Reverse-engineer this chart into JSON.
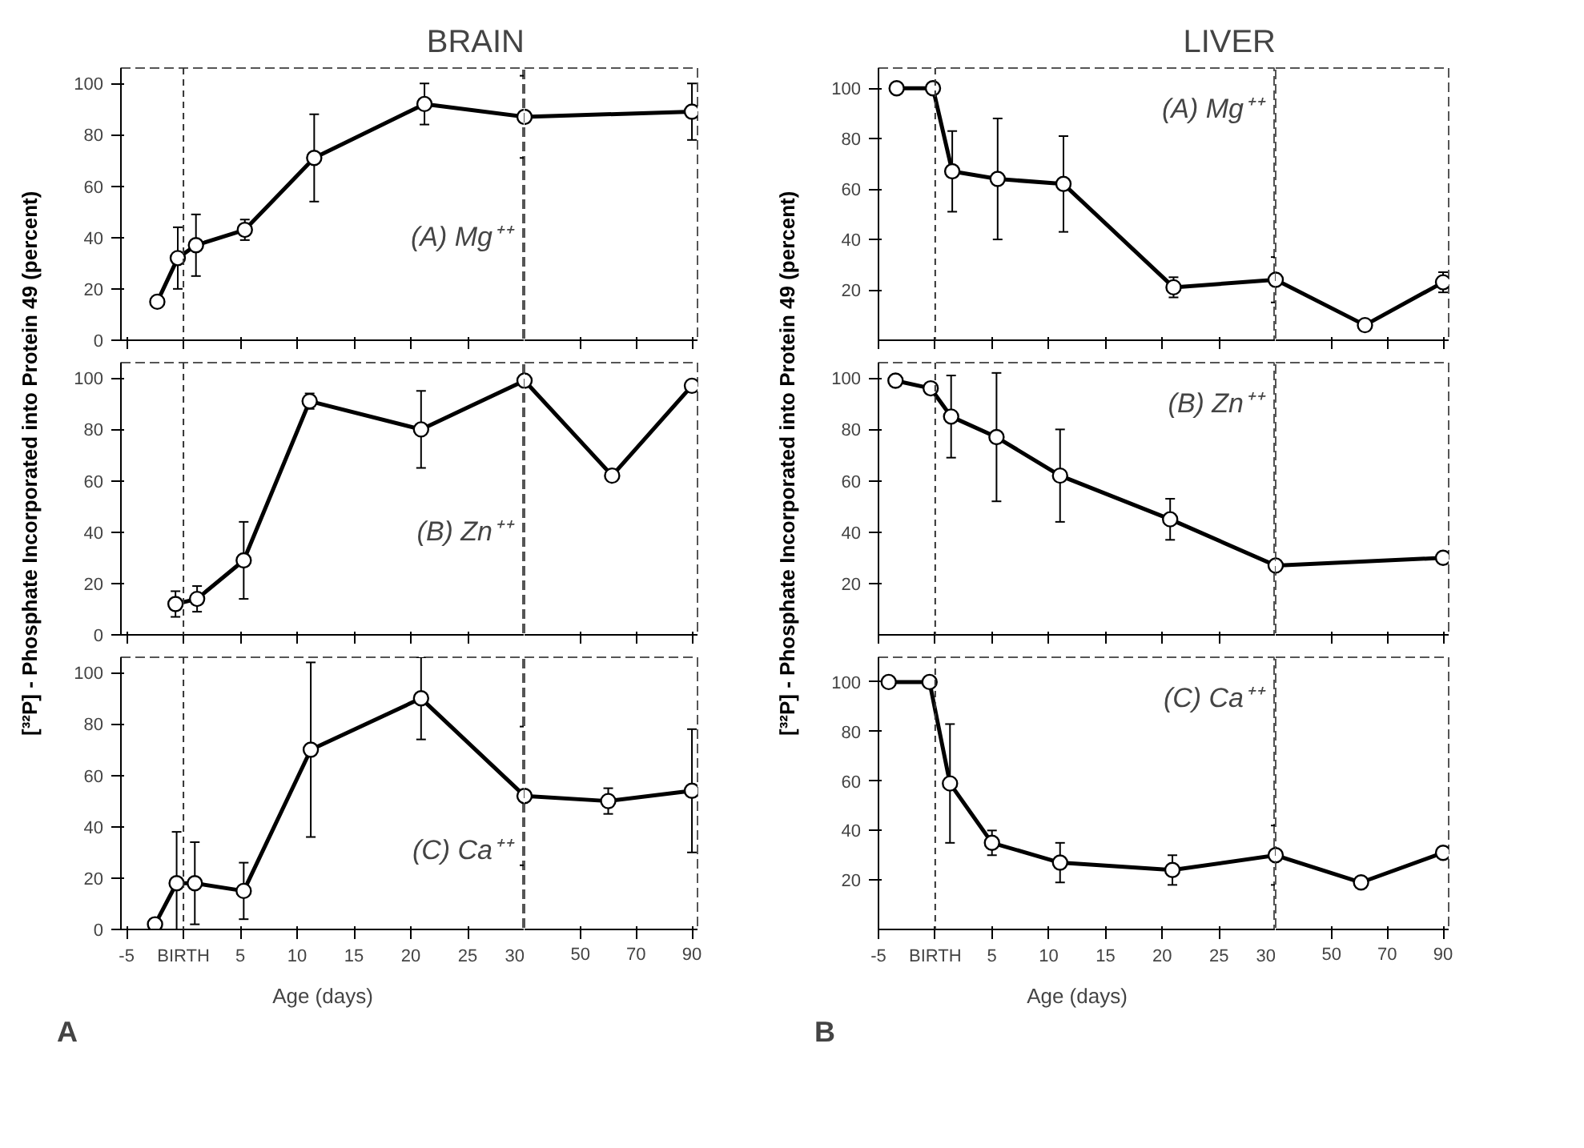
{
  "chart_data": [
    {
      "type": "line",
      "title": "BRAIN",
      "annotations": [
        "(A) Mg⁺⁺"
      ],
      "xlim": [
        -5.5,
        30
      ],
      "ylim": [
        0,
        106
      ],
      "yticks": [
        0,
        20,
        40,
        60,
        80,
        100
      ],
      "xticks": [
        -5,
        0,
        5,
        10,
        15,
        20,
        25,
        30
      ],
      "tick_labels": "y",
      "marker": "circle",
      "ref_lines": [
        {
          "axis": "x",
          "value": 0,
          "line_style": "dashed"
        }
      ],
      "series": [
        {
          "color": "#000000",
          "x": [
            -2.3,
            -0.5,
            1.1,
            5.4,
            11.5,
            21.2,
            30
          ],
          "values": [
            15,
            32,
            37,
            43,
            71,
            92,
            87
          ],
          "errors": [
            null,
            12,
            12,
            4,
            17,
            8,
            16
          ]
        }
      ]
    },
    {
      "type": "line",
      "xlim": [
        30,
        92
      ],
      "ylim": [
        0,
        106
      ],
      "xticks": [
        50,
        70,
        90
      ],
      "tick_labels": false,
      "marker": "circle",
      "series": [
        {
          "color": "#000000",
          "x": [
            30,
            90
          ],
          "values": [
            87,
            89
          ],
          "errors": [
            null,
            11
          ]
        }
      ]
    },
    {
      "type": "line",
      "annotations": [
        "(B) Zn⁺⁺"
      ],
      "xlim": [
        -5.5,
        30
      ],
      "ylim": [
        0,
        106
      ],
      "yticks": [
        0,
        20,
        40,
        60,
        80,
        100
      ],
      "xticks": [
        -5,
        0,
        5,
        10,
        15,
        20,
        25,
        30
      ],
      "tick_labels": "y",
      "marker": "circle",
      "ylabel": "[³²P] - Phosphate Incorporated into Protein 49 (percent)",
      "ref_lines": [
        {
          "axis": "x",
          "value": 0,
          "line_style": "dashed"
        }
      ],
      "series": [
        {
          "color": "#000000",
          "x": [
            -0.7,
            1.2,
            5.3,
            11.1,
            20.9,
            30
          ],
          "values": [
            12,
            14,
            29,
            91,
            80,
            99
          ],
          "errors": [
            5,
            5,
            15,
            3,
            15,
            null
          ]
        }
      ]
    },
    {
      "type": "line",
      "xlim": [
        30,
        92
      ],
      "ylim": [
        0,
        106
      ],
      "xticks": [
        50,
        70,
        90
      ],
      "tick_labels": false,
      "marker": "circle",
      "series": [
        {
          "color": "#000000",
          "x": [
            30,
            61.4,
            90
          ],
          "values": [
            99,
            62,
            97
          ]
        }
      ]
    },
    {
      "type": "line",
      "annotations": [
        "(C) Ca⁺⁺",
        "A"
      ],
      "xlabel": "Age (days)",
      "xlim": [
        -5.5,
        30
      ],
      "ylim": [
        0,
        106
      ],
      "yticks": [
        0,
        20,
        40,
        60,
        80,
        100
      ],
      "xticks": [
        -5,
        {
          "value": 0,
          "label": "BIRTH"
        },
        5,
        10,
        15,
        20,
        25,
        30
      ],
      "marker": "circle",
      "ref_lines": [
        {
          "axis": "x",
          "value": 0,
          "line_style": "dashed"
        }
      ],
      "series": [
        {
          "color": "#000000",
          "x": [
            -2.5,
            -0.6,
            1,
            5.3,
            11.2,
            20.9,
            30
          ],
          "values": [
            2,
            18,
            18,
            15,
            70,
            90,
            52
          ],
          "errors": [
            null,
            20,
            16,
            11,
            34,
            16,
            27
          ]
        }
      ]
    },
    {
      "type": "line",
      "xlim": [
        30,
        92
      ],
      "ylim": [
        0,
        106
      ],
      "xticks": [
        50,
        70,
        90
      ],
      "tick_labels": "x",
      "marker": "circle",
      "series": [
        {
          "color": "#000000",
          "x": [
            30,
            60,
            90
          ],
          "values": [
            52,
            50,
            54
          ],
          "errors": [
            null,
            5,
            24
          ]
        }
      ]
    },
    {
      "type": "line",
      "title": "LIVER",
      "annotations": [
        "(A) Mg⁺⁺"
      ],
      "xlim": [
        -5,
        30
      ],
      "ylim": [
        0,
        108
      ],
      "yticks": [
        20,
        40,
        60,
        80,
        100
      ],
      "xticks": [
        -5,
        0,
        5,
        10,
        15,
        20,
        25,
        30
      ],
      "tick_labels": "y",
      "marker": "circle",
      "ref_lines": [
        {
          "axis": "x",
          "value": 0,
          "line_style": "dashed"
        }
      ],
      "series": [
        {
          "color": "#000000",
          "x": [
            -3.4,
            -0.2,
            1.5,
            5.5,
            11.3,
            21,
            30
          ],
          "values": [
            100,
            100,
            67,
            64,
            62,
            21,
            24
          ],
          "errors": [
            null,
            null,
            16,
            24,
            19,
            4,
            9
          ]
        }
      ]
    },
    {
      "type": "line",
      "xlim": [
        30,
        92
      ],
      "ylim": [
        0,
        108
      ],
      "xticks": [
        50,
        70,
        90
      ],
      "tick_labels": false,
      "marker": "circle",
      "series": [
        {
          "color": "#000000",
          "x": [
            30,
            62,
            90
          ],
          "values": [
            24,
            6,
            23
          ],
          "errors": [
            null,
            null,
            4
          ]
        }
      ]
    },
    {
      "type": "line",
      "annotations": [
        "(B) Zn⁺⁺"
      ],
      "xlim": [
        -5,
        30
      ],
      "ylim": [
        0,
        106
      ],
      "yticks": [
        20,
        40,
        60,
        80,
        100
      ],
      "xticks": [
        -5,
        0,
        5,
        10,
        15,
        20,
        25,
        30
      ],
      "tick_labels": "y",
      "marker": "circle",
      "ylabel": "[³²P] - Phosphate Incorporated into Protein 49 (percent)",
      "ref_lines": [
        {
          "axis": "x",
          "value": 0,
          "line_style": "dashed"
        }
      ],
      "series": [
        {
          "color": "#000000",
          "x": [
            -3.5,
            -0.4,
            1.4,
            5.4,
            11,
            20.7,
            30
          ],
          "values": [
            99,
            96,
            85,
            77,
            62,
            45,
            27
          ],
          "errors": [
            null,
            null,
            16,
            25,
            18,
            8,
            null
          ]
        }
      ]
    },
    {
      "type": "line",
      "xlim": [
        30,
        92
      ],
      "ylim": [
        0,
        106
      ],
      "xticks": [
        50,
        70,
        90
      ],
      "tick_labels": false,
      "marker": "circle",
      "series": [
        {
          "color": "#000000",
          "x": [
            30,
            90
          ],
          "values": [
            27,
            30
          ]
        }
      ]
    },
    {
      "type": "line",
      "annotations": [
        "(C) Ca⁺⁺",
        "B"
      ],
      "xlabel": "Age (days)",
      "xlim": [
        -5,
        30
      ],
      "ylim": [
        0,
        110
      ],
      "yticks": [
        20,
        40,
        60,
        80,
        100
      ],
      "xticks": [
        -5,
        {
          "value": 0,
          "label": "BIRTH"
        },
        5,
        10,
        15,
        20,
        25,
        30
      ],
      "marker": "circle",
      "ref_lines": [
        {
          "axis": "x",
          "value": 0,
          "line_style": "dashed"
        }
      ],
      "series": [
        {
          "color": "#000000",
          "x": [
            -4.1,
            -0.5,
            1.3,
            5,
            11,
            20.9,
            30
          ],
          "values": [
            100,
            100,
            59,
            35,
            27,
            24,
            30
          ],
          "errors": [
            null,
            null,
            24,
            5,
            8,
            6,
            12
          ]
        }
      ]
    },
    {
      "type": "line",
      "xlim": [
        30,
        92
      ],
      "ylim": [
        0,
        110
      ],
      "xticks": [
        50,
        70,
        90
      ],
      "tick_labels": "x",
      "marker": "circle",
      "series": [
        {
          "color": "#000000",
          "x": [
            30,
            60.6,
            90
          ],
          "values": [
            30,
            19,
            31
          ]
        }
      ]
    }
  ]
}
